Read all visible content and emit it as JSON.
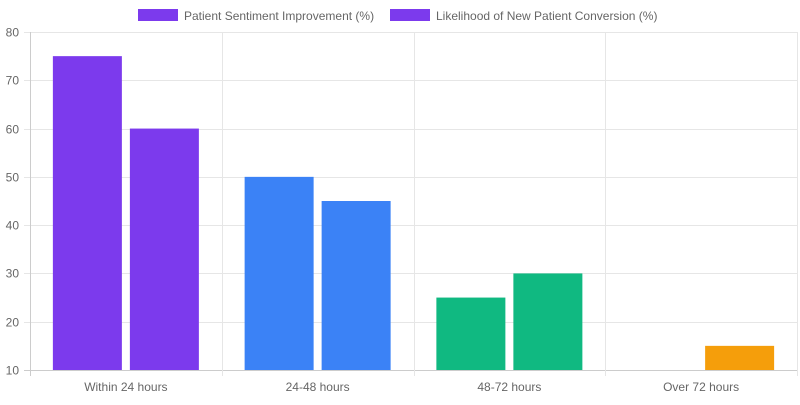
{
  "chart_data": {
    "type": "bar",
    "categories": [
      "Within 24 hours",
      "24-48 hours",
      "48-72 hours",
      "Over 72 hours"
    ],
    "series": [
      {
        "name": "Patient Sentiment Improvement (%)",
        "values": [
          75,
          50,
          25,
          10
        ]
      },
      {
        "name": "Likelihood of New Patient Conversion (%)",
        "values": [
          60,
          45,
          30,
          15
        ]
      }
    ],
    "category_colors": [
      "#7c3aed",
      "#3b82f6",
      "#10b981",
      "#f59e0b"
    ],
    "legend_color": "#7c3aed",
    "ylim": [
      10,
      80
    ],
    "yticks": [
      10,
      20,
      30,
      40,
      50,
      60,
      70,
      80
    ],
    "grid": true,
    "legend_position": "top"
  }
}
